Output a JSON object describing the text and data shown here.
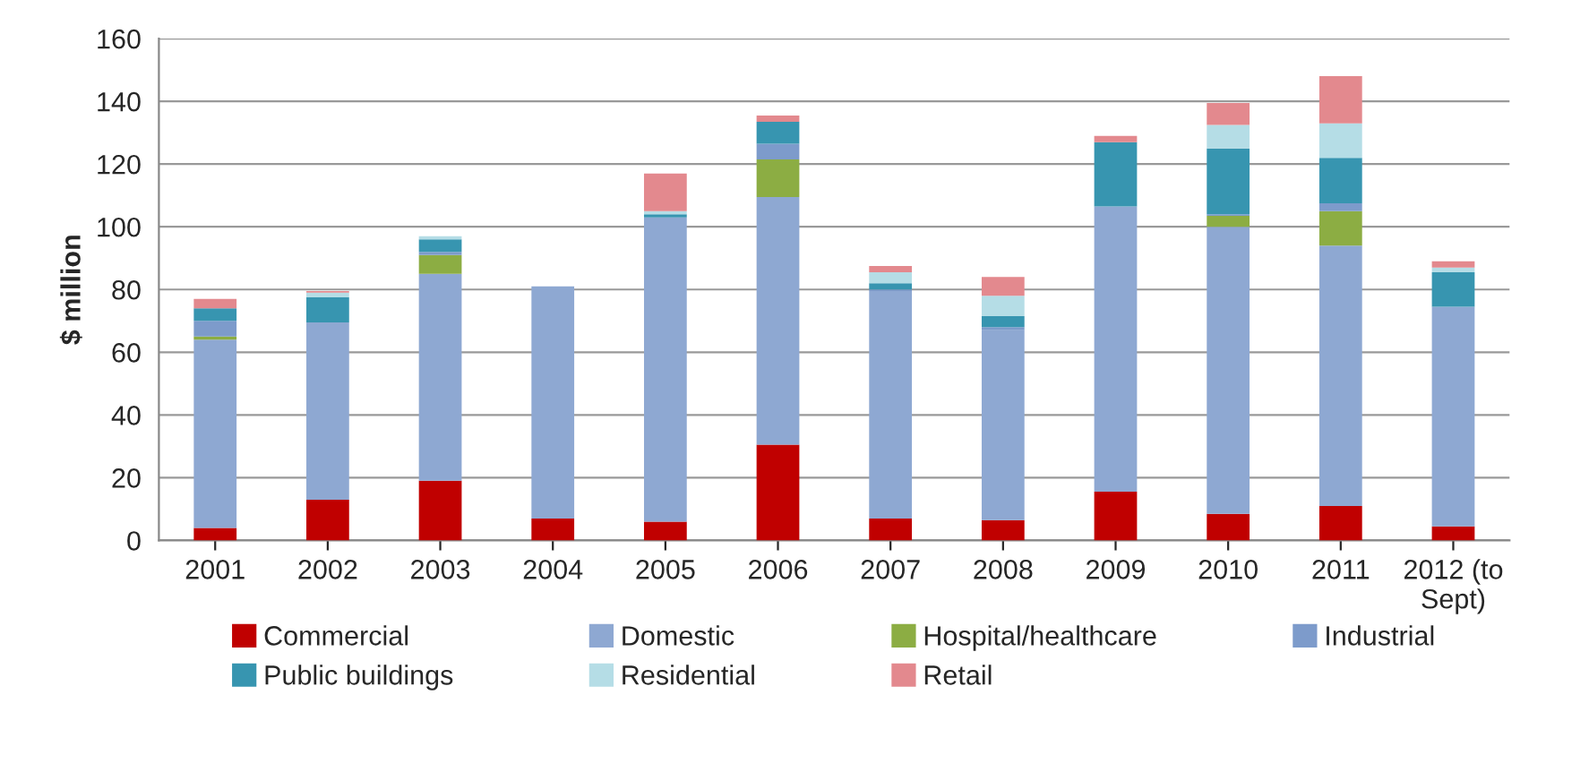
{
  "chart_data": {
    "type": "bar",
    "stacked": true,
    "ylabel": "$ million",
    "categories": [
      "2001",
      "2002",
      "2003",
      "2004",
      "2005",
      "2006",
      "2007",
      "2008",
      "2009",
      "2010",
      "2011",
      "2012 (to Sept)"
    ],
    "series": [
      {
        "name": "Commercial",
        "color": "#c00000",
        "values": [
          4,
          13,
          19,
          7,
          6,
          30.5,
          7,
          6.5,
          15.5,
          8.5,
          11,
          4.5
        ]
      },
      {
        "name": "Domestic",
        "color": "#8ea8d2",
        "values": [
          60,
          56.5,
          66,
          74,
          97,
          79,
          72.5,
          60.5,
          91,
          91.5,
          83,
          70
        ]
      },
      {
        "name": "Hospital/healthcare",
        "color": "#8cad43",
        "values": [
          1,
          0,
          6,
          0,
          0,
          12,
          0,
          0,
          0,
          3.5,
          11,
          0
        ]
      },
      {
        "name": "Industrial",
        "color": "#7d9bcb",
        "values": [
          5,
          0,
          1,
          0,
          0,
          5,
          0.5,
          1,
          0,
          0.5,
          2.5,
          0
        ]
      },
      {
        "name": "Public buildings",
        "color": "#3795b0",
        "values": [
          4,
          8,
          4,
          0,
          1,
          7,
          2,
          3.5,
          20.5,
          21,
          14.5,
          11
        ]
      },
      {
        "name": "Residential",
        "color": "#b5dde6",
        "values": [
          null,
          1.5,
          1,
          0,
          1,
          0,
          3.5,
          6.5,
          0,
          7.5,
          11,
          1.5
        ]
      },
      {
        "name": "Retail",
        "color": "#e3898e",
        "values": [
          3,
          0.5,
          0,
          0,
          12,
          2,
          2,
          6,
          2,
          7,
          15,
          2
        ]
      }
    ],
    "ylim": [
      0,
      160
    ],
    "yticks": [
      0,
      20,
      40,
      60,
      80,
      100,
      120,
      140,
      160
    ],
    "grid": "y",
    "legend": "bottom"
  }
}
